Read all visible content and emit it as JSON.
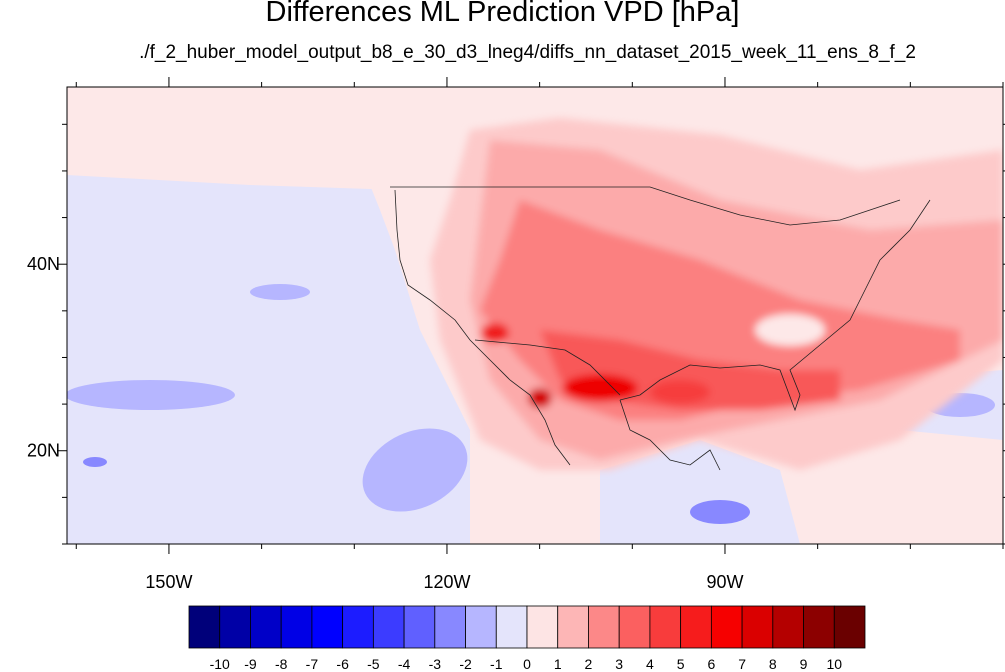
{
  "title": "Differences ML Prediction VPD [hPa]",
  "subtitle": "./f_2_huber_model_output_b8_e_30_d3_lneg4/diffs_nn_dataset_2015_week_11_ens_8_f_2",
  "map": {
    "lon_range": [
      -161,
      -60
    ],
    "lat_range": [
      10,
      59
    ],
    "x_ticks": [
      {
        "lon": -150,
        "label": "150W"
      },
      {
        "lon": -120,
        "label": "120W"
      },
      {
        "lon": -90,
        "label": "90W"
      }
    ],
    "y_ticks": [
      {
        "lat": 40,
        "label": "40N"
      },
      {
        "lat": 20,
        "label": "20N"
      }
    ],
    "background_color": "#fde8e8"
  },
  "colorbar": {
    "labels": [
      "-10",
      "-9",
      "-8",
      "-7",
      "-6",
      "-5",
      "-4",
      "-3",
      "-2",
      "-1",
      "0",
      "1",
      "2",
      "3",
      "4",
      "5",
      "6",
      "7",
      "8",
      "9",
      "10"
    ],
    "colors": [
      "#00007a",
      "#0000a6",
      "#0000c8",
      "#0000e6",
      "#0000ff",
      "#1c1cff",
      "#3c3cff",
      "#6060ff",
      "#8888ff",
      "#b6b6ff",
      "#e4e4fb",
      "#fde4e4",
      "#fdb6b6",
      "#fc8888",
      "#fb6060",
      "#f83c3c",
      "#f61c1c",
      "#f60000",
      "#da0000",
      "#b40000",
      "#8c0000",
      "#6a0000"
    ]
  }
}
